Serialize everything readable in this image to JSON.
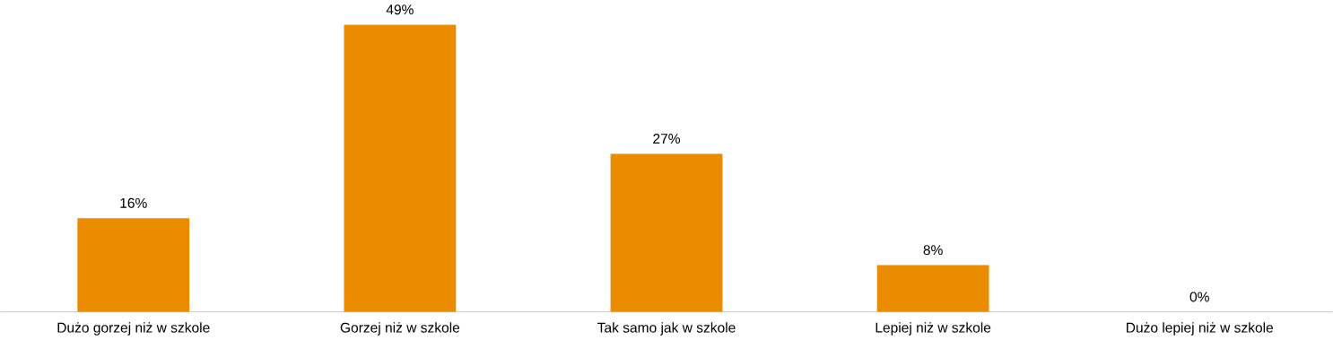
{
  "chart_data": {
    "type": "bar",
    "categories": [
      "Dużo gorzej niż w szkole",
      "Gorzej niż w szkole",
      "Tak samo jak w szkole",
      "Lepiej niż w szkole",
      "Dużo lepiej niż w szkole"
    ],
    "values": [
      16,
      49,
      27,
      8,
      0
    ],
    "value_labels": [
      "16%",
      "49%",
      "27%",
      "8%",
      "0%"
    ],
    "color": "#eb8c00"
  }
}
